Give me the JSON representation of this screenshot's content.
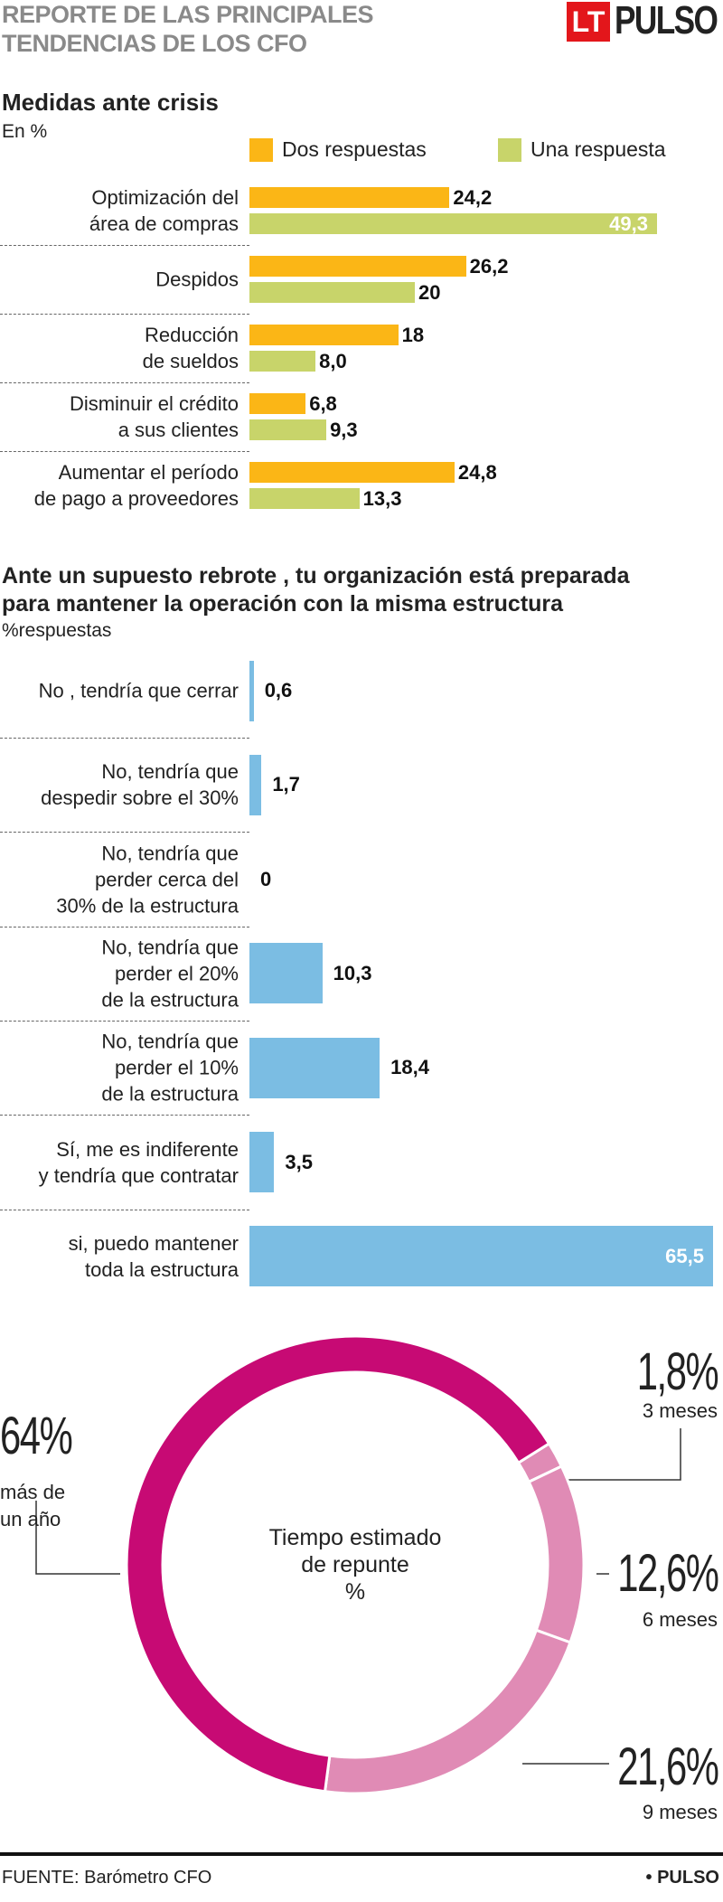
{
  "header": {
    "title": "REPORTE DE LAS PRINCIPALES\nTENDENCIAS DE LOS CFO",
    "logo_mark": "LT",
    "logo_text": "PULSO"
  },
  "chart_data": [
    {
      "type": "bar",
      "orientation": "horizontal",
      "title": "Medidas ante crisis",
      "subtitle": "En %",
      "categories": [
        "Optimización del\nárea de compras",
        "Despidos",
        "Reducción\nde sueldos",
        "Disminuir el crédito\na sus clientes",
        "Aumentar el período\nde pago a proveedores"
      ],
      "series": [
        {
          "name": "Dos respuestas",
          "color": "#fbb616",
          "values": [
            24.2,
            26.2,
            18,
            6.8,
            24.8
          ],
          "value_labels": [
            "24,2",
            "26,2",
            "18",
            "6,8",
            "24,8"
          ]
        },
        {
          "name": "Una respuesta",
          "color": "#c8d46a",
          "values": [
            49.3,
            20,
            8.0,
            9.3,
            13.3
          ],
          "value_labels": [
            "49,3",
            "20",
            "8,0",
            "9,3",
            "13,3"
          ]
        }
      ]
    },
    {
      "type": "bar",
      "orientation": "horizontal",
      "title": "Ante un supuesto rebrote , tu organización está preparada\npara mantener la operación con la misma estructura",
      "subtitle": "%respuestas",
      "categories": [
        "No , tendría que cerrar",
        "No, tendría que\ndespedir sobre el 30%",
        "No, tendría que\nperder cerca del\n30% de la estructura",
        "No, tendría que\nperder el 20%\nde la estructura",
        "No, tendría que\nperder el 10%\nde la estructura",
        "Sí, me es indiferente\ny tendría que contratar",
        "si, puedo mantener\ntoda la estructura"
      ],
      "values": [
        0.6,
        1.7,
        0,
        10.3,
        18.4,
        3.5,
        65.5
      ],
      "value_labels": [
        "0,6",
        "1,7",
        "0",
        "10,3",
        "18,4",
        "3,5",
        "65,5"
      ],
      "color": "#7bbde3"
    },
    {
      "type": "pie",
      "donut": true,
      "title": "Tiempo estimado\nde repunte\n%",
      "categories": [
        "3 meses",
        "6 meses",
        "9 meses",
        "más de\nun año"
      ],
      "values": [
        1.8,
        12.6,
        21.6,
        64
      ],
      "value_labels": [
        "1,8%",
        "12,6%",
        "21,6%",
        "64%"
      ],
      "colors": [
        "#e08bb5",
        "#e08bb5",
        "#e08bb5",
        "#c70a74"
      ]
    }
  ],
  "source": "FUENTE: Barómetro CFO",
  "credit": "• PULSO"
}
